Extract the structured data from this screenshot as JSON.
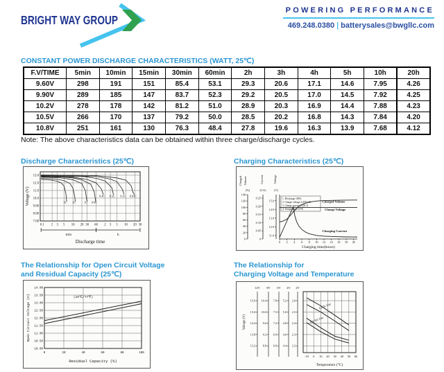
{
  "palette": {
    "navy": "#1F3590",
    "title_blue": "#2B96D2",
    "cyan": "#45C3EE",
    "green": "#2FA14F",
    "contact_blue": "#2B4EA2"
  },
  "header": {
    "logo": {
      "text": "BRIGHT WAY GROUP"
    },
    "tagline": "POWERING PERFORMANCE",
    "phone": "469.248.0380",
    "separator": "|",
    "email": "batterysales@bwgllc.com"
  },
  "discharge_table": {
    "title": "CONSTANT POWER DISCHARGE CHARACTERISTICS (WATT, 25℃)",
    "columns": [
      "F.V/TIME",
      "5min",
      "10min",
      "15min",
      "30min",
      "60min",
      "2h",
      "3h",
      "4h",
      "5h",
      "10h",
      "20h"
    ],
    "rows": [
      [
        "9.60V",
        "298",
        "191",
        "151",
        "85.4",
        "53.1",
        "29.3",
        "20.6",
        "17.1",
        "14.6",
        "7.95",
        "4.26"
      ],
      [
        "9.90V",
        "289",
        "185",
        "147",
        "83.7",
        "52.3",
        "29.2",
        "20.5",
        "17.0",
        "14.5",
        "7.92",
        "4.25"
      ],
      [
        "10.2V",
        "278",
        "178",
        "142",
        "81.2",
        "51.0",
        "28.9",
        "20.3",
        "16.9",
        "14.4",
        "7.88",
        "4.23"
      ],
      [
        "10.5V",
        "266",
        "170",
        "137",
        "79.2",
        "50.0",
        "28.5",
        "20.2",
        "16.8",
        "14.3",
        "7.84",
        "4.20"
      ],
      [
        "10.8V",
        "251",
        "161",
        "130",
        "76.3",
        "48.4",
        "27.8",
        "19.6",
        "16.3",
        "13.9",
        "7.68",
        "4.12"
      ]
    ],
    "note": "Note: The above characteristics data can be obtained within three charge/discharge cycles."
  },
  "chart_data": [
    {
      "id": "discharge",
      "type": "line",
      "title": "Discharge Characteristics (25℃)",
      "ylabel": "Voltage (V)",
      "xlabel": "Discharge time",
      "x_scale": "log-minutes",
      "ybottom": 7.0,
      "ytop": 13.45,
      "xmax": 1800,
      "y_ticks": [
        {
          "v": 13.0,
          "label": "13.0"
        },
        {
          "v": 12.0,
          "label": "12.0"
        },
        {
          "v": 11.0,
          "label": "11.0"
        },
        {
          "v": 10.0,
          "label": "10.0"
        },
        {
          "v": 9.0,
          "label": "9.00"
        },
        {
          "v": 8.0,
          "label": "8.00"
        },
        {
          "v": 7.0,
          "label": "7.00"
        }
      ],
      "x_ticks": [
        {
          "t": 0.85,
          "label": "0"
        },
        {
          "t": 1,
          "label": "1"
        },
        {
          "t": 2,
          "label": "2"
        },
        {
          "t": 3,
          "label": "3"
        },
        {
          "t": 5,
          "label": "5"
        },
        {
          "t": 10,
          "label": "10"
        },
        {
          "t": 20,
          "label": "20"
        },
        {
          "t": 30,
          "label": "30"
        },
        {
          "t": 60,
          "label": "60"
        },
        {
          "t": 120,
          "label": "2"
        },
        {
          "t": 180,
          "label": "3"
        },
        {
          "t": 300,
          "label": "5"
        },
        {
          "t": 600,
          "label": "10"
        },
        {
          "t": 1200,
          "label": "20"
        },
        {
          "t": 1800,
          "label": "30"
        }
      ],
      "unit_spans": [
        {
          "label": "min",
          "from": 0.85,
          "to": 60
        },
        {
          "label": "h",
          "from": 60,
          "to": 1800
        }
      ],
      "series": [
        {
          "name": "3C",
          "points": [
            [
              0.85,
              12.45
            ],
            [
              2,
              12.35
            ],
            [
              3,
              12.2
            ],
            [
              4,
              12.0
            ],
            [
              5,
              11.6
            ],
            [
              5.8,
              10.6
            ],
            [
              6.2,
              9.55
            ]
          ]
        },
        {
          "name": "2C",
          "points": [
            [
              0.85,
              12.6
            ],
            [
              2,
              12.52
            ],
            [
              3,
              12.45
            ],
            [
              5,
              12.3
            ],
            [
              8,
              11.9
            ],
            [
              10,
              11.3
            ],
            [
              11.5,
              10.2
            ],
            [
              12,
              9.55
            ]
          ]
        },
        {
          "name": "1C",
          "points": [
            [
              0.85,
              12.75
            ],
            [
              3,
              12.68
            ],
            [
              5,
              12.6
            ],
            [
              10,
              12.4
            ],
            [
              20,
              11.9
            ],
            [
              26,
              11.0
            ],
            [
              29,
              9.8
            ],
            [
              30,
              9.55
            ]
          ]
        },
        {
          "name": "0.6C",
          "points": [
            [
              0.85,
              12.82
            ],
            [
              5,
              12.75
            ],
            [
              10,
              12.65
            ],
            [
              20,
              12.4
            ],
            [
              40,
              11.8
            ],
            [
              52,
              10.8
            ],
            [
              57,
              9.8
            ],
            [
              58,
              9.55
            ]
          ]
        },
        {
          "name": "0.4C",
          "points": [
            [
              0.85,
              12.88
            ],
            [
              10,
              12.75
            ],
            [
              30,
              12.45
            ],
            [
              60,
              12.0
            ],
            [
              90,
              11.2
            ],
            [
              105,
              10.45
            ]
          ]
        },
        {
          "name": "0.2C",
          "points": [
            [
              0.85,
              12.93
            ],
            [
              20,
              12.85
            ],
            [
              60,
              12.6
            ],
            [
              120,
              12.25
            ],
            [
              200,
              11.4
            ],
            [
              230,
              10.45
            ]
          ]
        },
        {
          "name": "0.1C",
          "points": [
            [
              0.85,
              12.98
            ],
            [
              60,
              12.85
            ],
            [
              180,
              12.5
            ],
            [
              300,
              12.15
            ],
            [
              450,
              11.2
            ],
            [
              520,
              10.5
            ]
          ]
        },
        {
          "name": "0.05C",
          "points": [
            [
              0.85,
              13.03
            ],
            [
              60,
              12.95
            ],
            [
              300,
              12.65
            ],
            [
              600,
              12.35
            ],
            [
              900,
              11.6
            ],
            [
              1050,
              10.7
            ],
            [
              1150,
              10.5
            ]
          ]
        }
      ],
      "series_labels": [
        {
          "text": "3C",
          "t": 5.5,
          "v": 9.3
        },
        {
          "text": "2C",
          "t": 11,
          "v": 9.3
        },
        {
          "text": "1C",
          "t": 27,
          "v": 9.3
        },
        {
          "text": "0.6C",
          "t": 52,
          "v": 9.3
        },
        {
          "text": "0.4C",
          "t": 95,
          "v": 10.15
        },
        {
          "text": "0.2C",
          "t": 210,
          "v": 10.15
        },
        {
          "text": "0.1C",
          "t": 480,
          "v": 10.15
        },
        {
          "text": "0.05C",
          "t": 1050,
          "v": 10.15
        }
      ]
    },
    {
      "id": "charging",
      "type": "line",
      "title": "Charging Characteristics (25℃)",
      "xlabel": "Charging time(hours)",
      "axes": [
        {
          "label": "Charged Volume",
          "unit": "(%)",
          "ticks": [
            "140",
            "120",
            "100",
            "80",
            "60",
            "40",
            "20",
            "0"
          ]
        },
        {
          "label": "Current",
          "unit": "(CA)",
          "ticks": [
            "0.25",
            "0.20",
            "0.15",
            "0.10",
            "0.05",
            "0"
          ]
        },
        {
          "label": "Voltage",
          "unit": "(V)",
          "ticks": [
            "15.0",
            "14.0",
            "13.0",
            "12.0",
            "11.0"
          ]
        }
      ],
      "legend": [
        "1. Discharge 100%",
        "2. Charge voltage 2.45V/cell",
        "3. Charge current 0.25CA",
        "4. Temperature 25℃"
      ],
      "x_ticks": [
        "0",
        "2",
        "4",
        "6",
        "8",
        "10",
        "12",
        "14",
        "16",
        "18",
        "20"
      ],
      "curves": {
        "charged_volume": [
          [
            0,
            12.55
          ],
          [
            1,
            12.68
          ],
          [
            2,
            12.9
          ],
          [
            3,
            13.35
          ],
          [
            4,
            13.85
          ],
          [
            5,
            14.3
          ],
          [
            6,
            14.55
          ],
          [
            7,
            14.72
          ],
          [
            8,
            14.85
          ],
          [
            10,
            14.97
          ],
          [
            12,
            15.02
          ],
          [
            16,
            15.06
          ],
          [
            21,
            15.08
          ]
        ],
        "charge_voltage": [
          [
            0,
            14.22
          ],
          [
            21,
            14.22
          ]
        ],
        "charging_current": [
          [
            0,
            10.78
          ],
          [
            3.7,
            14.3
          ],
          [
            4.1,
            13.3
          ],
          [
            4.6,
            12.6
          ],
          [
            5.2,
            12.1
          ],
          [
            6,
            11.7
          ],
          [
            7,
            11.4
          ],
          [
            8,
            11.2
          ],
          [
            10,
            11.0
          ],
          [
            12,
            10.92
          ],
          [
            15,
            10.87
          ],
          [
            18,
            10.84
          ],
          [
            21,
            10.83
          ]
        ]
      },
      "curve_labels": [
        {
          "text": "Charged Volume",
          "x": 11.5,
          "y": 14.78
        },
        {
          "text": "Charge Voltage",
          "x": 12.2,
          "y": 13.88
        },
        {
          "text": "Charging Current",
          "x": 11.5,
          "y": 11.4
        }
      ]
    },
    {
      "id": "ocv_residual",
      "type": "line",
      "title_lines": [
        "The Relationship for Open Circuit Voltage",
        "and Residual Capacity (25℃)"
      ],
      "ylabel": "Open Circuit Voltage (V)",
      "xlabel": "Residual Capacity (%)",
      "ylim": [
        10.0,
        14.0
      ],
      "xlim": [
        0,
        100
      ],
      "y_ticks": [
        "14.00",
        "13.50",
        "13.00",
        "12.50",
        "12.00",
        "11.50",
        "11.00",
        "10.50",
        "10.00"
      ],
      "x_ticks": [
        "0",
        "20",
        "40",
        "60",
        "80",
        "100"
      ],
      "annotation": "(25℃/77℉)",
      "annotation_pos": [
        40,
        13.32
      ],
      "lines": [
        [
          [
            0,
            11.83
          ],
          [
            100,
            13.1
          ]
        ],
        [
          [
            0,
            11.63
          ],
          [
            100,
            12.93
          ]
        ]
      ]
    },
    {
      "id": "charge_voltage_temp",
      "type": "line",
      "title_lines": [
        "The Relationship for",
        "Charging Voltage and Temperature"
      ],
      "ylabel": "Voltage (V)",
      "xlabel": "Temperature (°C)",
      "scales": [
        {
          "name": "12V",
          "ticks": [
            "15.6",
            "15.0",
            "14.4",
            "13.8",
            "13.2"
          ]
        },
        {
          "name": "8V",
          "ticks": [
            "10.4",
            "10.0",
            "9.6",
            "9.2",
            "8.8"
          ]
        },
        {
          "name": "6V",
          "ticks": [
            "7.8",
            "7.5",
            "7.2",
            "6.9",
            "6.6"
          ]
        },
        {
          "name": "4V",
          "ticks": [
            "5.2",
            "5.0",
            "4.8",
            "4.6",
            "4.4"
          ]
        },
        {
          "name": "2V",
          "ticks": [
            "2.6",
            "2.5",
            "2.4",
            "2.3",
            "2.2"
          ]
        }
      ],
      "x_ticks": [
        "-10",
        "0",
        "10",
        "20",
        "30",
        "40",
        "50",
        "60"
      ],
      "xlim": [
        -15,
        60
      ],
      "ylim_2v": [
        2.14,
        2.68
      ],
      "grid_y_2v": [
        2.6,
        2.5,
        2.4,
        2.3,
        2.2
      ],
      "bands": [
        {
          "label": "Cycle Use",
          "upper": [
            [
              -10,
              2.625
            ],
            [
              10,
              2.555
            ],
            [
              30,
              2.47
            ],
            [
              50,
              2.385
            ]
          ],
          "lower": [
            [
              -10,
              2.565
            ],
            [
              10,
              2.5
            ],
            [
              30,
              2.42
            ],
            [
              50,
              2.335
            ]
          ]
        },
        {
          "label": "Trickle Use",
          "upper": [
            [
              -10,
              2.445
            ],
            [
              10,
              2.36
            ],
            [
              30,
              2.285
            ],
            [
              50,
              2.25
            ]
          ],
          "lower": [
            [
              -10,
              2.405
            ],
            [
              10,
              2.325
            ],
            [
              30,
              2.26
            ],
            [
              50,
              2.225
            ]
          ]
        }
      ],
      "band_label_pos": [
        {
          "x": 8,
          "y": 2.525,
          "rot": -20
        },
        {
          "x": -5,
          "y": 2.4,
          "rot": -20
        }
      ]
    }
  ]
}
